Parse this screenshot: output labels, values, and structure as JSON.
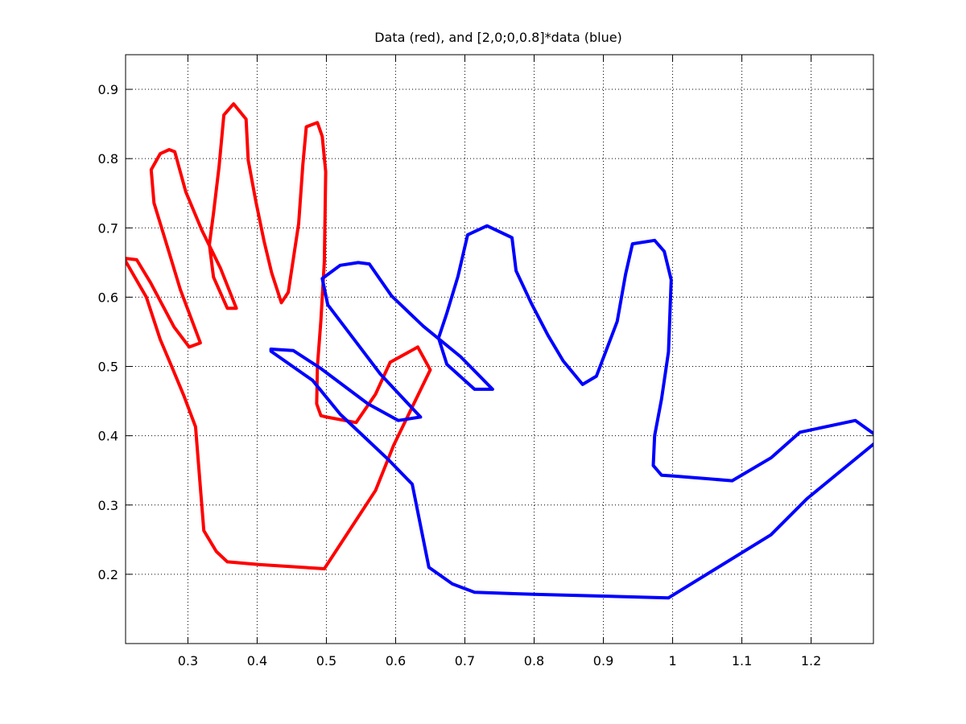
{
  "chart_data": {
    "type": "line",
    "title": "Data (red), and [2,0;0,0.8]*data (blue)",
    "xlabel": "",
    "ylabel": "",
    "xlim": [
      0.21,
      1.29
    ],
    "ylim": [
      0.1,
      0.95
    ],
    "grid": true,
    "x_ticks": [
      0.3,
      0.4,
      0.5,
      0.6,
      0.7,
      0.8,
      0.9,
      1,
      1.1,
      1.2
    ],
    "x_tick_labels": [
      "0.3",
      "0.4",
      "0.5",
      "0.6",
      "0.7",
      "0.8",
      "0.9",
      "1",
      "1.1",
      "1.2"
    ],
    "y_ticks": [
      0.2,
      0.3,
      0.4,
      0.5,
      0.6,
      0.7,
      0.8,
      0.9
    ],
    "y_tick_labels": [
      "0.2",
      "0.3",
      "0.4",
      "0.5",
      "0.6",
      "0.7",
      "0.8",
      "0.9"
    ],
    "series": [
      {
        "color": "#ff0000",
        "x": [
          0.497,
          0.402,
          0.357,
          0.341,
          0.323,
          0.311,
          0.294,
          0.277,
          0.26,
          0.24,
          0.21,
          0.21,
          0.226,
          0.246,
          0.28,
          0.302,
          0.318,
          0.289,
          0.27,
          0.251,
          0.247,
          0.26,
          0.273,
          0.281,
          0.297,
          0.32,
          0.347,
          0.37,
          0.357,
          0.337,
          0.331,
          0.337,
          0.345,
          0.352,
          0.366,
          0.384,
          0.387,
          0.398,
          0.41,
          0.421,
          0.435,
          0.445,
          0.46,
          0.466,
          0.471,
          0.487,
          0.494,
          0.499,
          0.497,
          0.492,
          0.487,
          0.486,
          0.492,
          0.5,
          0.543,
          0.571,
          0.592,
          0.632,
          0.65,
          0.597,
          0.571,
          0.497
        ],
        "y": [
          0.208,
          0.214,
          0.218,
          0.233,
          0.263,
          0.413,
          0.458,
          0.499,
          0.539,
          0.6,
          0.652,
          0.656,
          0.654,
          0.621,
          0.557,
          0.528,
          0.534,
          0.611,
          0.674,
          0.736,
          0.784,
          0.807,
          0.813,
          0.81,
          0.752,
          0.697,
          0.642,
          0.584,
          0.584,
          0.629,
          0.676,
          0.721,
          0.788,
          0.863,
          0.879,
          0.857,
          0.798,
          0.739,
          0.681,
          0.635,
          0.592,
          0.607,
          0.706,
          0.791,
          0.846,
          0.852,
          0.832,
          0.781,
          0.651,
          0.566,
          0.5,
          0.446,
          0.429,
          0.427,
          0.419,
          0.46,
          0.506,
          0.528,
          0.495,
          0.386,
          0.321,
          0.208
        ]
      },
      {
        "color": "#0000ff",
        "x": [
          0.994,
          0.804,
          0.714,
          0.682,
          0.648,
          0.624,
          0.589,
          0.554,
          0.52,
          0.48,
          0.42,
          0.42,
          0.452,
          0.492,
          0.56,
          0.604,
          0.636,
          0.578,
          0.54,
          0.502,
          0.494,
          0.52,
          0.546,
          0.562,
          0.594,
          0.64,
          0.694,
          0.74,
          0.714,
          0.674,
          0.662,
          0.674,
          0.69,
          0.704,
          0.732,
          0.768,
          0.774,
          0.796,
          0.82,
          0.842,
          0.87,
          0.89,
          0.92,
          0.932,
          0.942,
          0.974,
          0.988,
          0.998,
          0.994,
          0.984,
          0.974,
          0.972,
          0.984,
          1.0,
          1.086,
          1.142,
          1.184,
          1.264,
          1.3,
          1.194,
          1.142,
          0.994
        ],
        "y": [
          0.166,
          0.171,
          0.174,
          0.186,
          0.21,
          0.33,
          0.366,
          0.399,
          0.431,
          0.48,
          0.522,
          0.525,
          0.523,
          0.497,
          0.446,
          0.422,
          0.427,
          0.489,
          0.539,
          0.589,
          0.627,
          0.646,
          0.65,
          0.648,
          0.602,
          0.558,
          0.514,
          0.467,
          0.467,
          0.503,
          0.541,
          0.577,
          0.63,
          0.69,
          0.703,
          0.686,
          0.638,
          0.591,
          0.545,
          0.508,
          0.474,
          0.486,
          0.565,
          0.633,
          0.677,
          0.682,
          0.666,
          0.625,
          0.521,
          0.453,
          0.4,
          0.357,
          0.343,
          0.342,
          0.335,
          0.368,
          0.405,
          0.422,
          0.396,
          0.309,
          0.257,
          0.166
        ]
      }
    ]
  }
}
